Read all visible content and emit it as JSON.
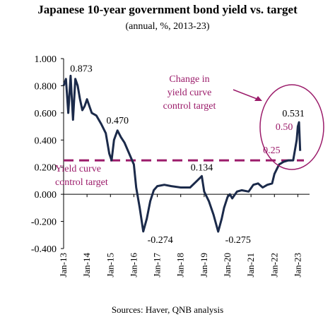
{
  "chart_data": {
    "type": "line",
    "title": "Japanese 10-year government bond yield vs. target",
    "subtitle": "(annual, %, 2013-23)",
    "source": "Sources: Haver, QNB analysis",
    "xlabel": "",
    "ylabel": "",
    "ylim": [
      -0.4,
      1.0
    ],
    "yticks": [
      "1.000",
      "0.800",
      "0.600",
      "0.400",
      "0.200",
      "0.000",
      "-0.200",
      "-0.400"
    ],
    "ytick_values": [
      1.0,
      0.8,
      0.6,
      0.4,
      0.2,
      0.0,
      -0.2,
      -0.4
    ],
    "xlim": [
      2013,
      2023.5
    ],
    "categories": [
      "Jan-13",
      "Jan-14",
      "Jan-15",
      "Jan-16",
      "Jan-17",
      "Jan-18",
      "Jan-19",
      "Jan-20",
      "Jan-21",
      "Jan-22",
      "Jan-23"
    ],
    "x": [
      2013.0,
      2013.1,
      2013.2,
      2013.3,
      2013.4,
      2013.5,
      2013.6,
      2013.7,
      2013.8,
      2013.9,
      2014.0,
      2014.2,
      2014.4,
      2014.6,
      2014.8,
      2014.95,
      2015.05,
      2015.15,
      2015.3,
      2015.45,
      2015.6,
      2015.8,
      2016.0,
      2016.1,
      2016.25,
      2016.4,
      2016.55,
      2016.7,
      2016.85,
      2017.0,
      2017.3,
      2017.6,
      2018.0,
      2018.4,
      2018.7,
      2018.9,
      2019.0,
      2019.2,
      2019.4,
      2019.6,
      2019.75,
      2019.85,
      2020.0,
      2020.1,
      2020.2,
      2020.4,
      2020.6,
      2020.9,
      2021.1,
      2021.3,
      2021.5,
      2021.7,
      2021.9,
      2022.0,
      2022.2,
      2022.4,
      2022.6,
      2022.8,
      2022.95,
      2023.0,
      2023.05,
      2023.1
    ],
    "series": [
      {
        "name": "",
        "color": "#1b2a4a",
        "values": [
          0.8,
          0.85,
          0.6,
          0.873,
          0.55,
          0.85,
          0.8,
          0.7,
          0.62,
          0.65,
          0.7,
          0.6,
          0.58,
          0.52,
          0.45,
          0.3,
          0.25,
          0.4,
          0.47,
          0.42,
          0.38,
          0.3,
          0.22,
          0.05,
          -0.1,
          -0.274,
          -0.18,
          -0.05,
          0.03,
          0.06,
          0.07,
          0.06,
          0.05,
          0.05,
          0.1,
          0.134,
          0.02,
          -0.05,
          -0.15,
          -0.275,
          -0.18,
          -0.1,
          -0.02,
          0.0,
          -0.03,
          0.02,
          0.03,
          0.02,
          0.07,
          0.08,
          0.05,
          0.07,
          0.08,
          0.15,
          0.22,
          0.24,
          0.25,
          0.25,
          0.4,
          0.5,
          0.531,
          0.32
        ]
      }
    ],
    "target_line": {
      "label_line1": "Yield curve",
      "label_line2": "control target",
      "value": 0.25,
      "color": "#9b1b6a"
    },
    "annotations": [
      {
        "text": "0.873",
        "x": 2013.3,
        "y": 0.873,
        "color": "#000000"
      },
      {
        "text": "0.470",
        "x": 2015.3,
        "y": 0.47,
        "color": "#000000"
      },
      {
        "text": "-0.274",
        "x": 2016.4,
        "y": -0.274,
        "color": "#000000"
      },
      {
        "text": "0.134",
        "x": 2018.9,
        "y": 0.134,
        "color": "#000000"
      },
      {
        "text": "-0.275",
        "x": 2019.6,
        "y": -0.275,
        "color": "#000000"
      },
      {
        "text": "0.531",
        "x": 2023.05,
        "y": 0.531,
        "color": "#000000"
      },
      {
        "text": "0.50",
        "x": 2022.6,
        "y": 0.5,
        "color": "#9b1b6a"
      },
      {
        "text": "0.25",
        "x": 2021.7,
        "y": 0.25,
        "color": "#9b1b6a"
      }
    ],
    "change_note": {
      "line1": "Change in",
      "line2": "yield curve",
      "line3": "control target",
      "color": "#9b1b6a"
    },
    "grid": false
  }
}
